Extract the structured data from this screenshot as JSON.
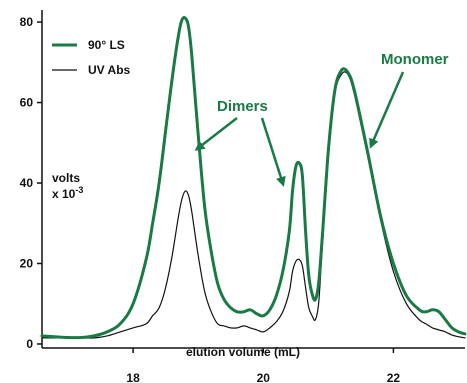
{
  "chart_data": {
    "type": "line",
    "title": "",
    "xlabel": "elution volume (mL)",
    "ylabel": "volts",
    "ylabel_line2_prefix": "x 10",
    "ylabel_line2_exp": "-3",
    "xlim": [
      16.6,
      23.1
    ],
    "ylim": [
      -1,
      83
    ],
    "xticks": [
      18,
      20,
      22
    ],
    "yticks": [
      0,
      20,
      40,
      60,
      80
    ],
    "grid": false,
    "legend_position": "top-left",
    "colors": {
      "ls": "#1a7a45",
      "uv": "#111111",
      "annotation": "#1a7a45"
    },
    "series": [
      {
        "name": "90° LS",
        "x": [
          16.6,
          16.8,
          17.0,
          17.2,
          17.4,
          17.6,
          17.8,
          18.0,
          18.2,
          18.3,
          18.4,
          18.5,
          18.6,
          18.7,
          18.75,
          18.8,
          18.85,
          18.9,
          19.0,
          19.1,
          19.2,
          19.3,
          19.4,
          19.5,
          19.6,
          19.7,
          19.8,
          19.9,
          20.0,
          20.1,
          20.2,
          20.3,
          20.4,
          20.45,
          20.5,
          20.55,
          20.6,
          20.65,
          20.7,
          20.75,
          20.8,
          20.85,
          20.9,
          21.0,
          21.1,
          21.2,
          21.3,
          21.4,
          21.6,
          21.8,
          22.0,
          22.2,
          22.4,
          22.5,
          22.6,
          22.7,
          22.8,
          22.9,
          23.0,
          23.1
        ],
        "values": [
          2,
          1.8,
          1.6,
          1.6,
          2,
          3,
          5,
          10,
          21,
          30,
          40,
          53,
          66,
          77,
          80.5,
          81,
          79,
          72,
          52,
          34,
          23,
          15,
          11,
          9,
          8,
          8,
          8.5,
          7.5,
          7,
          8.5,
          12,
          18,
          28,
          38,
          44,
          45,
          42,
          28,
          17,
          12.5,
          11,
          15,
          25,
          48,
          63,
          68,
          67.5,
          63,
          48,
          32,
          20,
          12,
          8.5,
          8,
          8.5,
          8,
          6,
          4,
          3,
          2.5
        ]
      },
      {
        "name": "UV Abs",
        "x": [
          16.6,
          16.8,
          17.0,
          17.2,
          17.4,
          17.6,
          17.8,
          18.0,
          18.2,
          18.3,
          18.4,
          18.5,
          18.6,
          18.7,
          18.75,
          18.8,
          18.85,
          18.9,
          19.0,
          19.1,
          19.2,
          19.3,
          19.4,
          19.5,
          19.6,
          19.7,
          19.8,
          19.9,
          20.0,
          20.1,
          20.2,
          20.3,
          20.4,
          20.45,
          20.5,
          20.55,
          20.6,
          20.65,
          20.7,
          20.75,
          20.8,
          20.85,
          20.9,
          21.0,
          21.1,
          21.2,
          21.3,
          21.4,
          21.6,
          21.8,
          22.0,
          22.2,
          22.4,
          22.5,
          22.6,
          22.7,
          22.8,
          22.9,
          23.0,
          23.1
        ],
        "values": [
          1.5,
          1.5,
          1.5,
          1.5,
          1.5,
          2,
          3,
          4,
          5,
          7,
          9,
          14,
          22,
          32,
          36,
          38,
          37,
          33,
          22,
          13,
          8,
          5,
          4.5,
          4,
          4,
          4.5,
          4,
          3.5,
          3,
          4,
          5.5,
          8,
          13,
          18,
          20.5,
          21,
          19.5,
          14,
          9,
          7,
          6,
          10,
          22,
          46,
          62,
          67,
          67,
          62,
          47,
          31,
          18,
          10,
          6,
          5,
          4,
          3.5,
          3,
          2.2,
          1.8,
          1.5
        ]
      }
    ],
    "annotations": [
      {
        "text": "Dimers",
        "x": 19.9,
        "y": 60
      },
      {
        "text": "Monomer",
        "x": 22.5,
        "y": 74
      }
    ]
  }
}
